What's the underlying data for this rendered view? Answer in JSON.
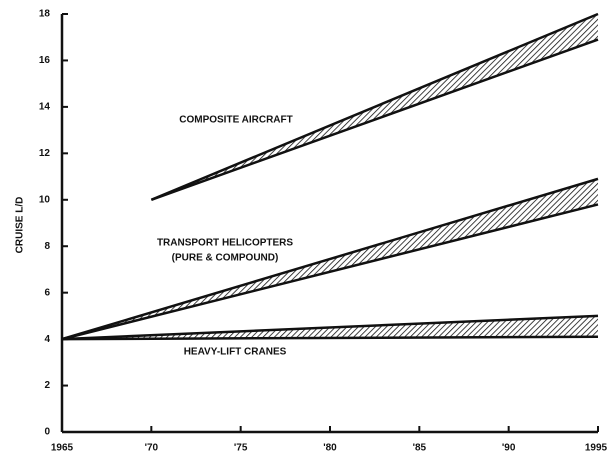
{
  "chart_data": {
    "type": "band",
    "ylabel": "CRUISE L/D",
    "xlim": [
      1965,
      1995
    ],
    "ylim": [
      0,
      18
    ],
    "yticks": [
      0,
      2,
      4,
      6,
      8,
      10,
      12,
      14,
      16,
      18
    ],
    "xticks": [
      1965,
      {
        "value": 1970,
        "label": "'70"
      },
      {
        "value": 1975,
        "label": "'75"
      },
      {
        "value": 1980,
        "label": "'80"
      },
      {
        "value": 1985,
        "label": "'85"
      },
      {
        "value": 1990,
        "label": "'90"
      },
      1995
    ],
    "color": "#111111",
    "series": [
      {
        "name": "COMPOSITE AIRCRAFT",
        "x": [
          1970,
          1995
        ],
        "upper": [
          10,
          18
        ],
        "lower": [
          10,
          16.9
        ]
      },
      {
        "name": "TRANSPORT HELICOPTERS",
        "note": "(PURE & COMPOUND)",
        "x": [
          1965,
          1995
        ],
        "upper": [
          4,
          10.9
        ],
        "lower": [
          4,
          9.8
        ]
      },
      {
        "name": "HEAVY-LIFT CRANES",
        "x": [
          1965,
          1995
        ],
        "upper": [
          4,
          5.0
        ],
        "lower": [
          4,
          4.1
        ]
      }
    ]
  }
}
